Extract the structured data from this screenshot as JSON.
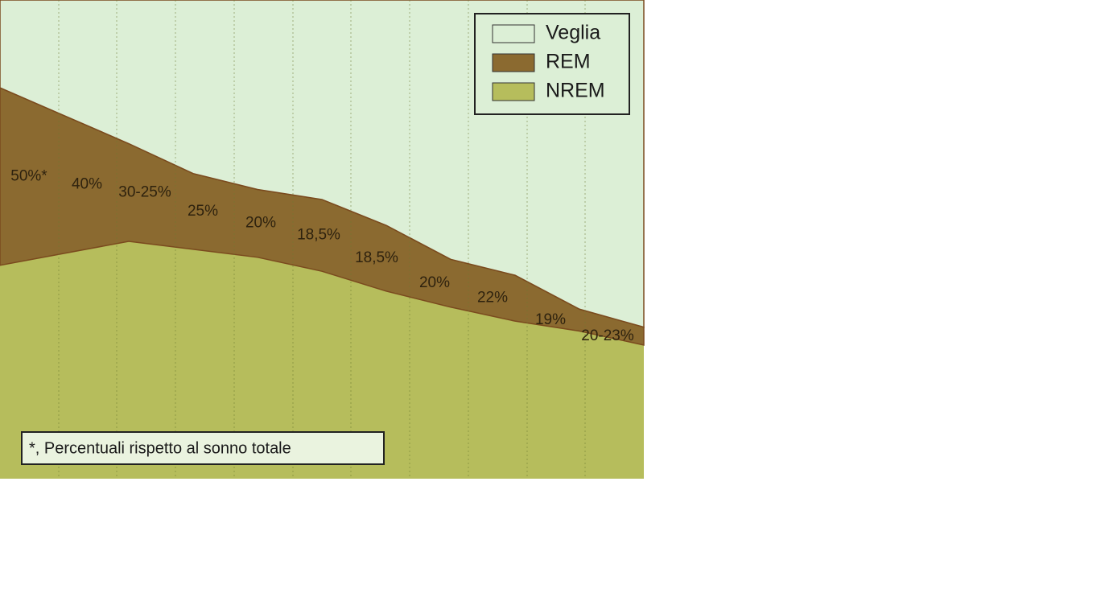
{
  "chart_data": {
    "type": "stacked-area",
    "categories": [
      null,
      null,
      null,
      null,
      null,
      null,
      null,
      null,
      null,
      null,
      null
    ],
    "series": [
      {
        "name": "NREM",
        "color": "#b6bd5c",
        "values": [
          10.7,
          11.3,
          11.9,
          11.5,
          11.1,
          10.4,
          9.4,
          8.6,
          7.9,
          7.4,
          6.7
        ]
      },
      {
        "name": "REM",
        "color": "#8b6a30",
        "values": [
          8.9,
          6.9,
          4.9,
          3.8,
          3.4,
          3.6,
          3.3,
          2.4,
          2.3,
          1.1,
          0.9
        ]
      },
      {
        "name": "Veglia",
        "color": "#dcefd6",
        "values": [
          4.4,
          5.8,
          7.2,
          8.7,
          9.5,
          10.0,
          11.3,
          13.0,
          13.8,
          15.5,
          16.4
        ]
      }
    ],
    "annotations": [
      "50%*",
      "40%",
      "30-25%",
      "25%",
      "20%",
      "18,5%",
      "18,5%",
      "20%",
      "22%",
      "19%",
      "20-23%"
    ],
    "note": "*, Percentuali rispetto al sonno totale",
    "ylim": [
      0,
      24
    ],
    "legend": "top-right"
  }
}
